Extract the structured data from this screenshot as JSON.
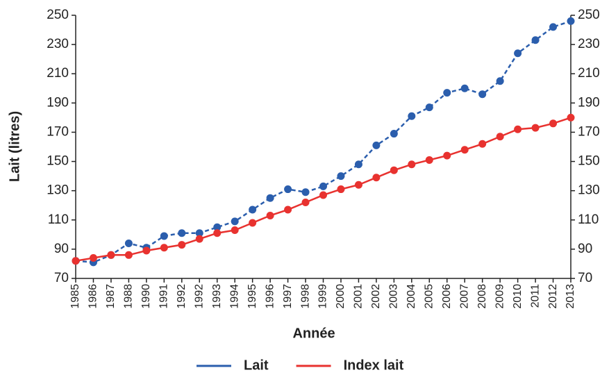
{
  "chart_data": {
    "type": "line",
    "x_label": "Année",
    "y_label": "Lait (litres)",
    "categories": [
      "1985",
      "1986",
      "1987",
      "1988",
      "1990",
      "1991",
      "1992",
      "1992",
      "1993",
      "1994",
      "1995",
      "1996",
      "1997",
      "1998",
      "1999",
      "2000",
      "2001",
      "2002",
      "2003",
      "2004",
      "2005",
      "2006",
      "2007",
      "2008",
      "2009",
      "2010",
      "2011",
      "2012",
      "2013"
    ],
    "series": [
      {
        "name": "Lait",
        "color": "#2b5ead",
        "dashed": true,
        "values": [
          82,
          81,
          86,
          94,
          91,
          99,
          101,
          101,
          105,
          109,
          117,
          125,
          131,
          129,
          133,
          140,
          148,
          161,
          169,
          181,
          187,
          197,
          200,
          196,
          205,
          224,
          233,
          242,
          246
        ]
      },
      {
        "name": "Index lait",
        "color": "#e8322f",
        "dashed": false,
        "values": [
          82,
          84,
          86,
          86,
          89,
          91,
          93,
          97,
          101,
          103,
          108,
          113,
          117,
          122,
          127,
          131,
          134,
          139,
          144,
          148,
          151,
          154,
          158,
          162,
          167,
          172,
          173,
          176,
          180
        ]
      }
    ],
    "ylim": [
      70,
      250
    ],
    "yticks": [
      70,
      90,
      110,
      130,
      150,
      170,
      190,
      210,
      230,
      250
    ],
    "y2lim": [
      70,
      250
    ],
    "y2ticks": [
      70,
      90,
      110,
      130,
      150,
      170,
      190,
      210,
      230,
      250
    ]
  }
}
